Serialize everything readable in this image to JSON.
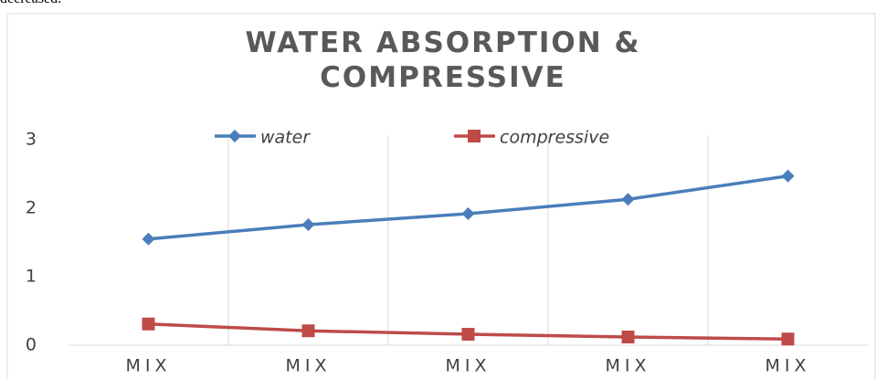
{
  "text_above": "decreased.",
  "chart_data": {
    "type": "line",
    "title": "WATER ABSORPTION & COMPRESSIVE",
    "categories": [
      "MIX",
      "MIX",
      "MIX",
      "MIX",
      "MIX"
    ],
    "series": [
      {
        "name": "water",
        "color": "#4a7ebb",
        "marker": "diamond",
        "values": [
          1.55,
          1.76,
          1.92,
          2.13,
          2.47
        ]
      },
      {
        "name": "compressive",
        "color": "#be4b48",
        "marker": "square",
        "values": [
          0.31,
          0.21,
          0.16,
          0.12,
          0.09
        ]
      }
    ],
    "ylim": [
      0,
      3
    ],
    "yticks": [
      0,
      1,
      2,
      3
    ],
    "grid": true,
    "legend": "top"
  }
}
